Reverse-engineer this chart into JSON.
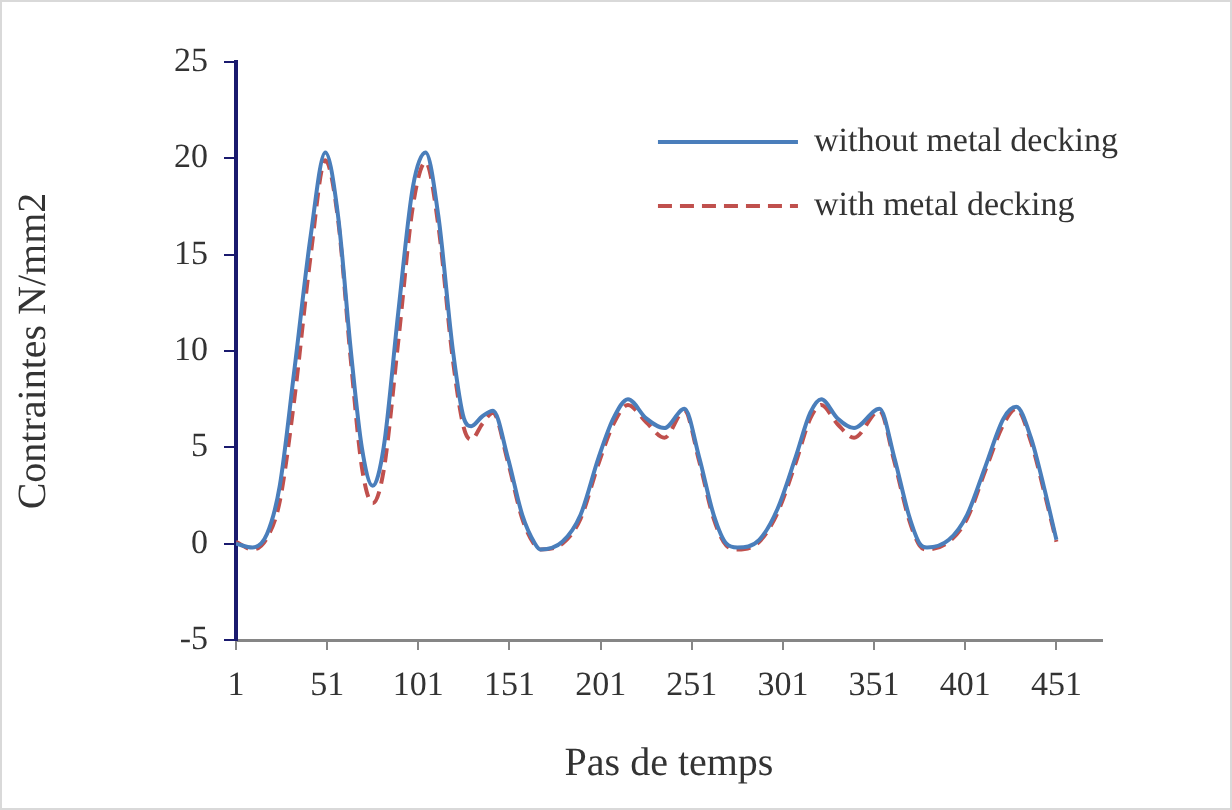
{
  "chart_data": {
    "type": "line",
    "xlabel": "Pas de temps",
    "ylabel": "Contraintes N/mm2",
    "x": [
      1,
      10,
      18,
      25,
      33,
      42,
      50,
      57,
      64,
      70,
      76,
      82,
      90,
      98,
      105,
      112,
      120,
      126,
      130,
      136,
      142,
      150,
      158,
      165,
      168,
      180,
      190,
      200,
      208,
      216,
      226,
      236,
      247,
      255,
      263,
      270,
      276,
      288,
      298,
      308,
      316,
      322,
      331,
      340,
      354,
      362,
      370,
      376,
      380,
      392,
      402,
      412,
      422,
      429,
      437,
      444,
      451
    ],
    "series": [
      {
        "name": "without metal decking",
        "color": "#4a7ebb",
        "line_style": "solid",
        "values": [
          0,
          -0.2,
          0.5,
          3,
          9,
          16,
          20.3,
          17,
          10,
          5,
          3,
          5,
          12,
          18.5,
          20.3,
          17,
          10,
          6.5,
          6.1,
          6.6,
          6.9,
          4.5,
          1.5,
          0,
          -0.3,
          0.1,
          1.5,
          4.5,
          6.5,
          7.5,
          6.5,
          6,
          7,
          4.5,
          1.5,
          0,
          -0.2,
          0.2,
          1.8,
          4.5,
          6.8,
          7.5,
          6.5,
          6,
          7,
          4.5,
          1.5,
          0,
          -0.2,
          0.2,
          1.5,
          4,
          6.5,
          7.1,
          5.5,
          3,
          0.2
        ]
      },
      {
        "name": "with metal decking",
        "color": "#c0504d",
        "line_style": "dashed",
        "values": [
          0.1,
          -0.3,
          0.3,
          2.2,
          7.5,
          15,
          19.9,
          16.8,
          9.5,
          4,
          2.1,
          3.8,
          10.5,
          17.5,
          19.8,
          16.5,
          9.5,
          6,
          5.4,
          6.2,
          6.8,
          4.3,
          1.3,
          -0.1,
          -0.3,
          0,
          1.3,
          4.2,
          6.2,
          7.2,
          6.3,
          5.5,
          6.9,
          4.3,
          1.3,
          -0.1,
          -0.3,
          0.1,
          1.6,
          4.2,
          6.5,
          7.2,
          6.2,
          5.5,
          6.9,
          4.3,
          1.3,
          -0.1,
          -0.3,
          0.1,
          1.3,
          3.8,
          6.2,
          7,
          5.3,
          2.8,
          0.1
        ]
      }
    ],
    "xlim": [
      1,
      476
    ],
    "xticks": [
      1,
      51,
      101,
      151,
      201,
      251,
      301,
      351,
      401,
      451
    ],
    "ylim": [
      -5,
      25
    ],
    "yticks": [
      -5,
      0,
      5,
      10,
      15,
      20,
      25
    ],
    "grid": false,
    "legend": "top right",
    "marker": "none"
  }
}
